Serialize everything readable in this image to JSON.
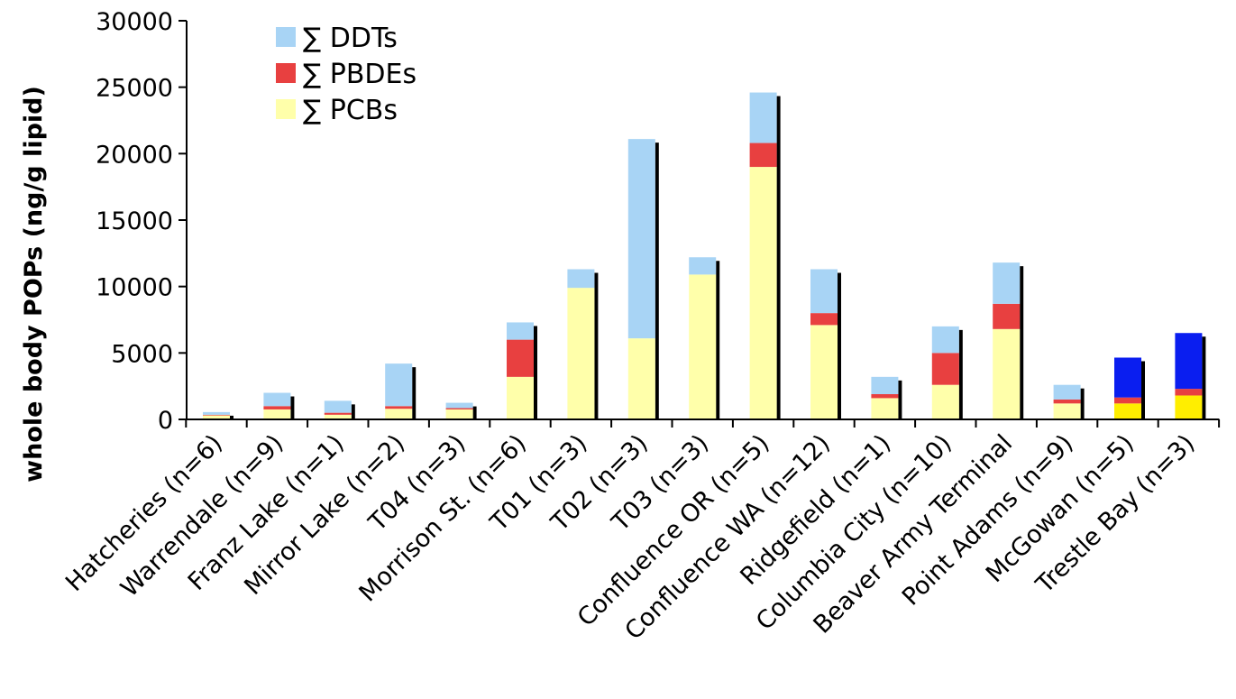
{
  "chart_data": {
    "type": "bar",
    "stacked": true,
    "title": "",
    "xlabel": "",
    "ylabel": "whole body POPs (ng/g lipid)",
    "ylim": [
      0,
      30000
    ],
    "yticks": [
      "0",
      "5000",
      "10000",
      "15000",
      "20000",
      "25000",
      "30000"
    ],
    "grid": false,
    "legend_position": "top-left",
    "categories": [
      "Hatcheries (n=6)",
      "Warrendale (n=9)",
      "Franz Lake (n=1)",
      "Mirror Lake (n=2)",
      "T04 (n=3)",
      "Morrison St. (n=6)",
      "T01 (n=3)",
      "T02 (n=3)",
      "T03 (n=3)",
      "Confluence OR (n=5)",
      "Confluence WA (n=12)",
      "Ridgefield (n=1)",
      "Columbia City (n=10)",
      "Beaver Army Terminal",
      "Point Adams (n=9)",
      "McGowan (n=5)",
      "Trestle Bay (n=3)"
    ],
    "series": [
      {
        "name": "∑ PCBs",
        "color": "#ffffaa",
        "values": [
          300,
          750,
          350,
          800,
          750,
          3200,
          9900,
          6100,
          10900,
          19000,
          7100,
          1600,
          2600,
          6800,
          1200,
          1200,
          1800
        ]
      },
      {
        "name": "∑ PBDEs",
        "color": "#e84040",
        "values": [
          50,
          250,
          150,
          200,
          100,
          2800,
          0,
          0,
          0,
          1800,
          900,
          300,
          2400,
          1900,
          300,
          450,
          500
        ]
      },
      {
        "name": "∑ DDTs",
        "color": "#a8d4f5",
        "values": [
          200,
          1000,
          900,
          3200,
          400,
          1300,
          1400,
          15000,
          1300,
          3800,
          3300,
          1300,
          2000,
          3100,
          1100,
          3000,
          4200
        ]
      }
    ],
    "highlight_series_colors": {
      "∑ PCBs": "#ffee00",
      "∑ DDTs": "#0a1ef0"
    },
    "highlight_categories": [
      "McGowan (n=5)",
      "Trestle Bay (n=3)"
    ]
  }
}
